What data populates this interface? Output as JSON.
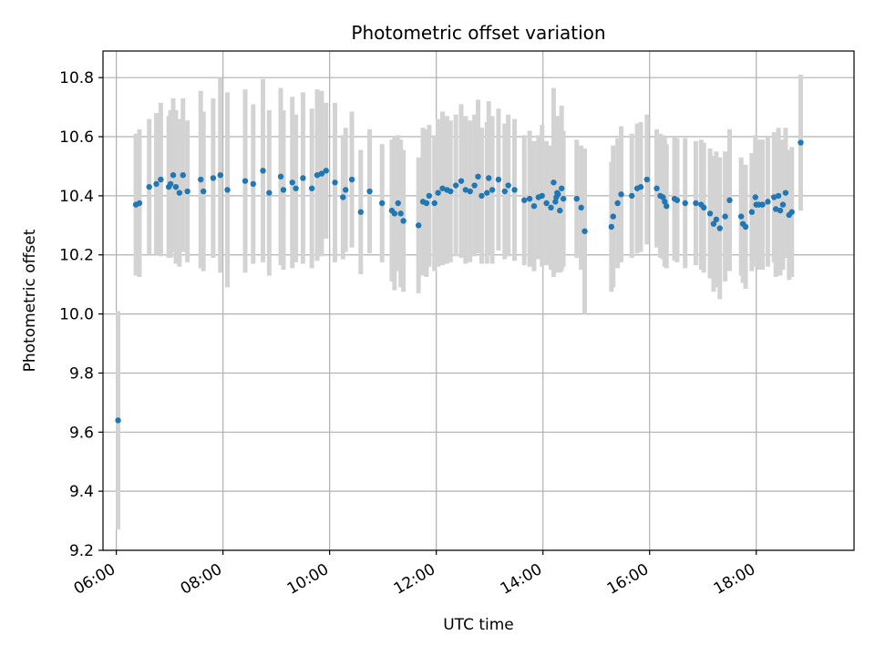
{
  "chart_data": {
    "type": "scatter",
    "title": "Photometric offset variation",
    "xlabel": "UTC time",
    "ylabel": "Photometric offset",
    "xlim": [
      "05:45",
      "19:50"
    ],
    "ylim": [
      9.2,
      10.89
    ],
    "grid": true,
    "colors": {
      "points": "#1f77b4",
      "errorbars": "#d3d3d3",
      "grid": "#b0b0b0",
      "axes": "#000000"
    },
    "x_ticks": [
      "06:00",
      "08:00",
      "10:00",
      "12:00",
      "14:00",
      "16:00",
      "18:00"
    ],
    "y_ticks": [
      "9.2",
      "9.4",
      "9.6",
      "9.8",
      "10.0",
      "10.2",
      "10.4",
      "10.6",
      "10.8"
    ],
    "series": [
      {
        "x": [
          "06:02",
          "06:22",
          "06:26",
          "06:37",
          "06:45",
          "06:50",
          "06:59",
          "07:01",
          "07:04",
          "07:07",
          "07:11",
          "07:15",
          "07:20",
          "07:35",
          "07:38",
          "07:49",
          "07:57",
          "08:05",
          "08:25",
          "08:34",
          "08:45",
          "08:52",
          "09:05",
          "09:08",
          "09:18",
          "09:22",
          "09:30",
          "09:40",
          "09:46",
          "09:51",
          "09:56",
          "10:06",
          "10:15",
          "10:18",
          "10:25",
          "10:35",
          "10:45",
          "10:59",
          "11:10",
          "11:13",
          "11:17",
          "11:20",
          "11:23",
          "11:40",
          "11:45",
          "11:49",
          "11:52",
          "11:58",
          "12:02",
          "12:07",
          "12:12",
          "12:16",
          "12:22",
          "12:28",
          "12:33",
          "12:38",
          "12:43",
          "12:47",
          "12:51",
          "12:57",
          "12:59",
          "13:03",
          "13:10",
          "13:17",
          "13:21",
          "13:28",
          "13:39",
          "13:45",
          "13:50",
          "13:55",
          "13:59",
          "14:04",
          "14:09",
          "14:12",
          "14:14",
          "14:15",
          "14:16",
          "14:17",
          "14:19",
          "14:21",
          "14:23",
          "14:38",
          "14:43",
          "14:47",
          "15:17",
          "15:19",
          "15:24",
          "15:28",
          "15:40",
          "15:46",
          "15:50",
          "15:57",
          "16:08",
          "16:12",
          "16:15",
          "16:17",
          "16:19",
          "16:28",
          "16:31",
          "16:40",
          "16:52",
          "16:58",
          "17:01",
          "17:08",
          "17:12",
          "17:15",
          "17:19",
          "17:25",
          "17:30",
          "17:43",
          "17:45",
          "17:48",
          "17:55",
          "17:59",
          "18:00",
          "18:03",
          "18:07",
          "18:13",
          "18:20",
          "18:22",
          "18:25",
          "18:27",
          "18:30",
          "18:33",
          "18:37",
          "18:40",
          "18:50"
        ],
        "y": [
          9.64,
          10.37,
          10.375,
          10.43,
          10.44,
          10.455,
          10.43,
          10.44,
          10.47,
          10.43,
          10.41,
          10.47,
          10.415,
          10.455,
          10.415,
          10.46,
          10.47,
          10.42,
          10.45,
          10.44,
          10.485,
          10.41,
          10.465,
          10.42,
          10.445,
          10.425,
          10.46,
          10.425,
          10.47,
          10.475,
          10.485,
          10.445,
          10.395,
          10.42,
          10.455,
          10.345,
          10.415,
          10.375,
          10.35,
          10.34,
          10.375,
          10.34,
          10.315,
          10.3,
          10.38,
          10.375,
          10.4,
          10.375,
          10.41,
          10.425,
          10.42,
          10.415,
          10.435,
          10.45,
          10.42,
          10.415,
          10.435,
          10.465,
          10.4,
          10.41,
          10.46,
          10.42,
          10.455,
          10.415,
          10.435,
          10.42,
          10.385,
          10.39,
          10.365,
          10.395,
          10.4,
          10.375,
          10.36,
          10.445,
          10.38,
          10.395,
          10.41,
          10.405,
          10.35,
          10.425,
          10.39,
          10.39,
          10.36,
          10.28,
          10.295,
          10.33,
          10.375,
          10.405,
          10.4,
          10.425,
          10.43,
          10.455,
          10.425,
          10.4,
          10.395,
          10.38,
          10.365,
          10.39,
          10.385,
          10.375,
          10.375,
          10.37,
          10.36,
          10.34,
          10.305,
          10.32,
          10.29,
          10.33,
          10.385,
          10.33,
          10.305,
          10.295,
          10.345,
          10.395,
          10.37,
          10.37,
          10.37,
          10.38,
          10.395,
          10.355,
          10.4,
          10.35,
          10.37,
          10.41,
          10.335,
          10.345,
          10.58
        ],
        "yerr": [
          0.37,
          0.24,
          0.25,
          0.23,
          0.24,
          0.26,
          0.24,
          0.25,
          0.26,
          0.26,
          0.25,
          0.26,
          0.24,
          0.3,
          0.27,
          0.27,
          0.33,
          0.33,
          0.31,
          0.27,
          0.31,
          0.28,
          0.3,
          0.27,
          0.29,
          0.25,
          0.29,
          0.27,
          0.29,
          0.28,
          0.23,
          0.27,
          0.21,
          0.21,
          0.23,
          0.21,
          0.21,
          0.2,
          0.24,
          0.26,
          0.23,
          0.25,
          0.24,
          0.23,
          0.25,
          0.25,
          0.24,
          0.23,
          0.25,
          0.26,
          0.25,
          0.24,
          0.24,
          0.26,
          0.25,
          0.24,
          0.24,
          0.26,
          0.23,
          0.24,
          0.26,
          0.25,
          0.24,
          0.23,
          0.24,
          0.24,
          0.22,
          0.23,
          0.22,
          0.21,
          0.24,
          0.21,
          0.21,
          0.32,
          0.24,
          0.25,
          0.26,
          0.25,
          0.21,
          0.28,
          0.23,
          0.2,
          0.21,
          0.28,
          0.22,
          0.24,
          0.22,
          0.23,
          0.21,
          0.22,
          0.22,
          0.22,
          0.2,
          0.21,
          0.21,
          0.22,
          0.21,
          0.21,
          0.21,
          0.22,
          0.21,
          0.22,
          0.22,
          0.22,
          0.23,
          0.23,
          0.24,
          0.22,
          0.24,
          0.2,
          0.2,
          0.21,
          0.2,
          0.21,
          0.21,
          0.22,
          0.22,
          0.22,
          0.22,
          0.23,
          0.23,
          0.22,
          0.22,
          0.22,
          0.22,
          0.22,
          0.23
        ]
      }
    ]
  }
}
